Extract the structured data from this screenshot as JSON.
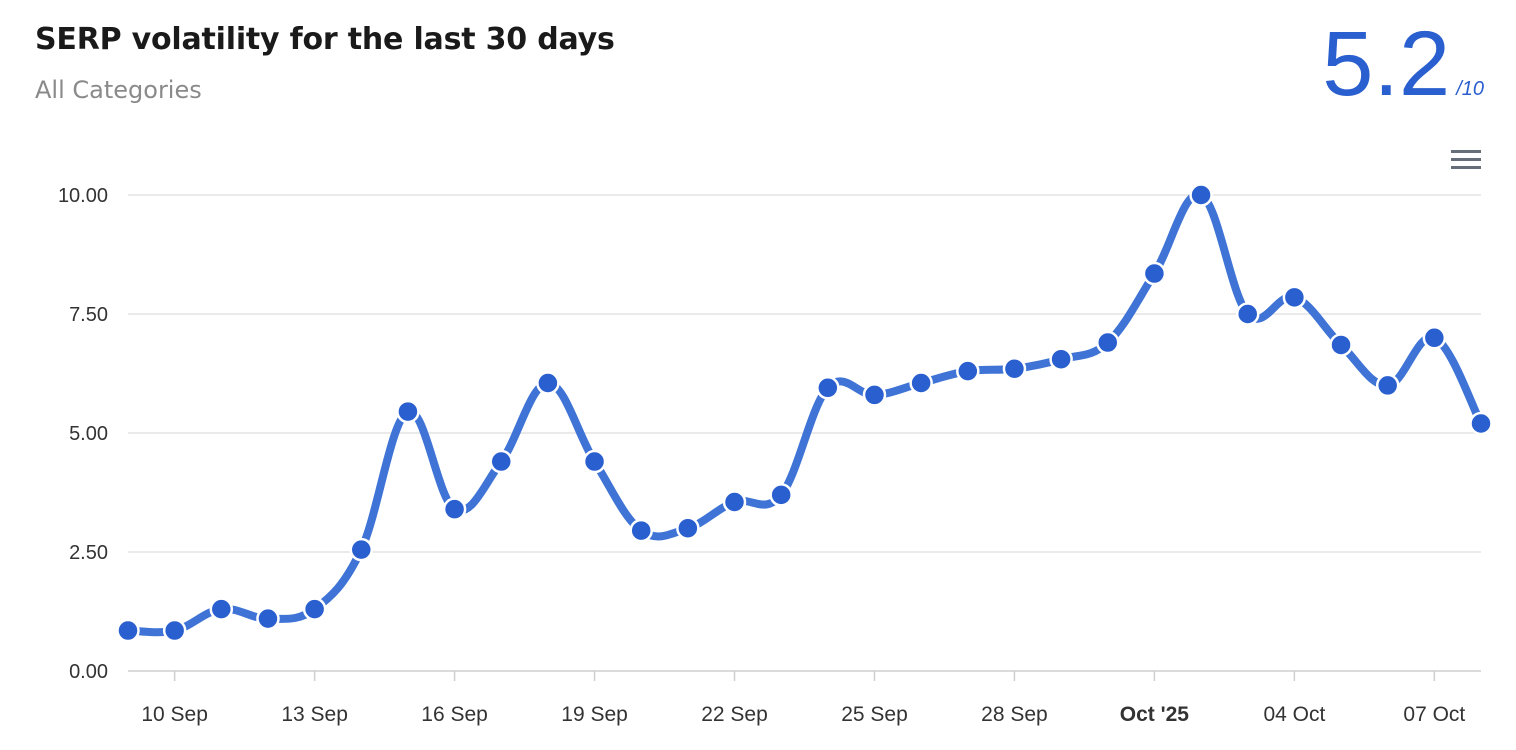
{
  "header": {
    "title": "SERP volatility for the last 30 days",
    "subtitle": "All Categories",
    "score": "5.2",
    "score_max": "/10"
  },
  "colors": {
    "accent": "#2a5fcf",
    "line": "#3f74d6",
    "grid": "#e3e3e3",
    "axis_text": "#333333"
  },
  "icons": {
    "menu": "hamburger-menu-icon"
  },
  "chart_data": {
    "type": "line",
    "title": "SERP volatility for the last 30 days",
    "subtitle": "All Categories",
    "xlabel": "",
    "ylabel": "",
    "ylim": [
      0,
      10
    ],
    "grid": true,
    "yticks": [
      "0.00",
      "2.50",
      "5.00",
      "7.50",
      "10.00"
    ],
    "ytick_values": [
      0,
      2.5,
      5,
      7.5,
      10
    ],
    "xticks": [
      {
        "label": "10 Sep",
        "date": "2025-09-10",
        "bold": false
      },
      {
        "label": "13 Sep",
        "date": "2025-09-13",
        "bold": false
      },
      {
        "label": "16 Sep",
        "date": "2025-09-16",
        "bold": false
      },
      {
        "label": "19 Sep",
        "date": "2025-09-19",
        "bold": false
      },
      {
        "label": "22 Sep",
        "date": "2025-09-22",
        "bold": false
      },
      {
        "label": "25 Sep",
        "date": "2025-09-25",
        "bold": false
      },
      {
        "label": "28 Sep",
        "date": "2025-09-28",
        "bold": false
      },
      {
        "label": "Oct '25",
        "date": "2025-10-01",
        "bold": true
      },
      {
        "label": "04 Oct",
        "date": "2025-10-04",
        "bold": false
      },
      {
        "label": "07 Oct",
        "date": "2025-10-07",
        "bold": false
      }
    ],
    "x": [
      "2025-09-09",
      "2025-09-10",
      "2025-09-11",
      "2025-09-12",
      "2025-09-13",
      "2025-09-14",
      "2025-09-15",
      "2025-09-16",
      "2025-09-17",
      "2025-09-18",
      "2025-09-19",
      "2025-09-20",
      "2025-09-21",
      "2025-09-22",
      "2025-09-23",
      "2025-09-24",
      "2025-09-25",
      "2025-09-26",
      "2025-09-27",
      "2025-09-28",
      "2025-09-29",
      "2025-09-30",
      "2025-10-01",
      "2025-10-02",
      "2025-10-03",
      "2025-10-04",
      "2025-10-05",
      "2025-10-06",
      "2025-10-07",
      "2025-10-08"
    ],
    "series": [
      {
        "values": [
          0.85,
          0.85,
          1.3,
          1.1,
          1.3,
          2.55,
          5.45,
          3.4,
          4.4,
          6.05,
          4.4,
          2.95,
          3.0,
          3.55,
          3.7,
          5.95,
          5.8,
          6.05,
          6.3,
          6.35,
          6.55,
          6.9,
          8.35,
          10.0,
          7.5,
          7.85,
          6.85,
          6.0,
          7.0,
          5.2
        ]
      }
    ]
  }
}
